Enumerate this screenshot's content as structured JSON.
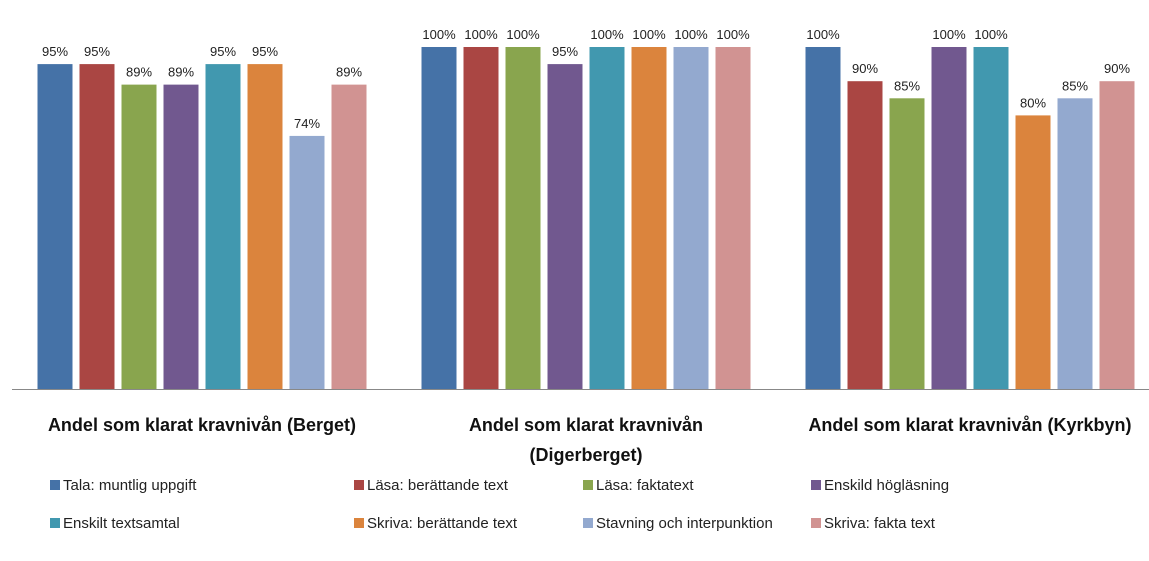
{
  "chart_data": {
    "type": "bar",
    "categories": [
      "Andel som klarat kravnivån (Berget)",
      "Andel som klarat kravnivån (Digerberget)",
      "Andel som klarat kravnivån (Kyrkbyn)"
    ],
    "series": [
      {
        "name": "Tala: muntlig uppgift",
        "color": "#4572a7",
        "values": [
          95,
          100,
          100
        ],
        "value_labels": [
          "95%",
          "100%",
          "100%"
        ]
      },
      {
        "name": "Läsa: berättande text",
        "color": "#aa4643",
        "values": [
          95,
          100,
          90
        ],
        "value_labels": [
          "95%",
          "100%",
          "90%"
        ]
      },
      {
        "name": "Läsa: faktatext",
        "color": "#89a54e",
        "values": [
          89,
          100,
          85
        ],
        "value_labels": [
          "89%",
          "100%",
          "85%"
        ]
      },
      {
        "name": "Enskild högläsning",
        "color": "#71588f",
        "values": [
          89,
          95,
          100
        ],
        "value_labels": [
          "89%",
          "95%",
          "100%"
        ]
      },
      {
        "name": "Enskilt textsamtal",
        "color": "#4198af",
        "values": [
          95,
          100,
          100
        ],
        "value_labels": [
          "95%",
          "100%",
          "100%"
        ]
      },
      {
        "name": "Skriva: berättande text",
        "color": "#db843d",
        "values": [
          95,
          100,
          80
        ],
        "value_labels": [
          "95%",
          "100%",
          "80%"
        ]
      },
      {
        "name": "Stavning och interpunktion",
        "color": "#93a9cf",
        "values": [
          74,
          100,
          85
        ],
        "value_labels": [
          "74%",
          "100%",
          "85%"
        ]
      },
      {
        "name": "Skriva: fakta text",
        "color": "#d19392",
        "values": [
          89,
          100,
          90
        ],
        "value_labels": [
          "89%",
          "100%",
          "90%"
        ]
      }
    ],
    "legend": "bottom"
  }
}
